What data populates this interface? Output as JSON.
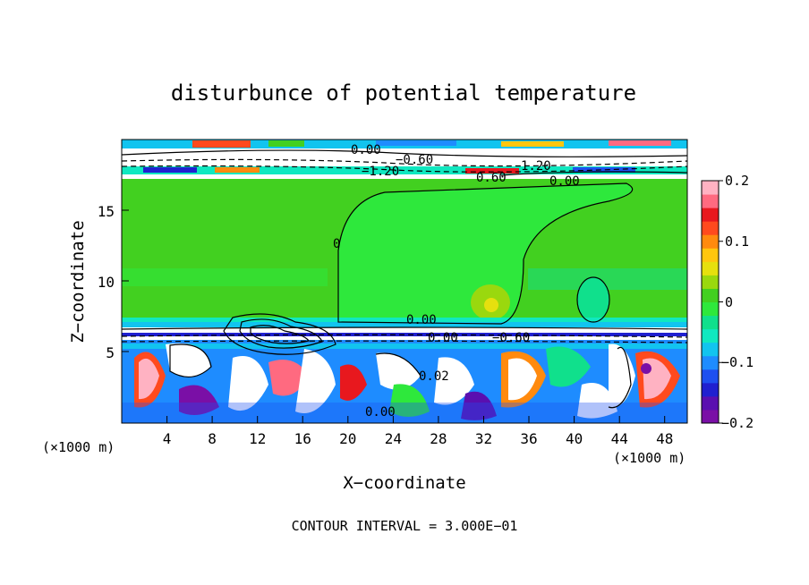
{
  "chart_data": {
    "type": "heatmap",
    "title": "disturbunce of potential temperature",
    "xlabel": "X−coordinate",
    "ylabel": "Z−coordinate",
    "x_unit_left": "(×1000 m)",
    "x_unit_right": "(×1000 m)",
    "xlim": [
      0,
      50
    ],
    "ylim": [
      0,
      20
    ],
    "x_ticks": [
      "4",
      "8",
      "12",
      "16",
      "20",
      "24",
      "28",
      "32",
      "36",
      "40",
      "44",
      "48"
    ],
    "y_ticks": [
      "5",
      "10",
      "15"
    ],
    "colorbar": {
      "min": -0.2,
      "max": 0.2,
      "labels": [
        "0.2",
        "0.1",
        "0",
        "−0.1",
        "−0.2"
      ],
      "colors": [
        "#7a0fa6",
        "#5a0fb0",
        "#2020d0",
        "#1e50f0",
        "#1e8cff",
        "#12c4ef",
        "#10e8c0",
        "#10e08c",
        "#2ee83c",
        "#42d020",
        "#9ad80e",
        "#e6e00e",
        "#ffc60e",
        "#ff8a0e",
        "#ff4a1e",
        "#e8181e",
        "#ff6a80",
        "#ffb2c2"
      ]
    },
    "contour_labels": [
      "0.00",
      "−0.60",
      "−1.20",
      "0.60",
      "1.20",
      "0.00",
      "0.00",
      "0",
      "0.00",
      "−0.60",
      "0.02",
      "0.00"
    ],
    "footer": "CONTOUR INTERVAL = 3.000E−01"
  }
}
